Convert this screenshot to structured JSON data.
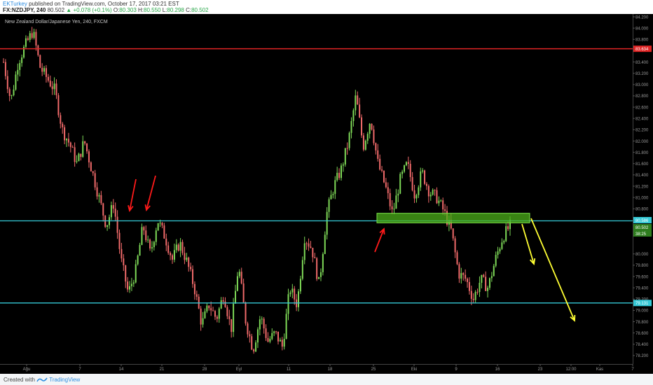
{
  "header": {
    "author": "EKTurkey",
    "published": "published on TradingView.com, October 17, 2017 03:21 EST",
    "symbol": "FX:NZDJPY, 240",
    "last": "80.502",
    "change": "+0.078 (+0.1%)",
    "o_label": "O:",
    "o": "80.303",
    "h_label": "H:",
    "h": "80.550",
    "l_label": "L:",
    "l": "80.298",
    "c_label": "C:",
    "c": "80.502"
  },
  "footer": {
    "created_with": "Created with",
    "brand": "TradingView"
  },
  "chart_data": {
    "type": "candlestick",
    "title": "New Zealand Dollar/Japanese Yen, 240, FXCM",
    "ylim": [
      78.05,
      84.25
    ],
    "y_ticks": [
      "84.200",
      "84.000",
      "83.800",
      "83.400",
      "83.200",
      "83.000",
      "82.800",
      "82.600",
      "82.400",
      "82.200",
      "82.000",
      "81.800",
      "81.600",
      "81.400",
      "81.200",
      "81.000",
      "80.800",
      "80.000",
      "79.800",
      "79.600",
      "79.400",
      "79.200",
      "79.000",
      "78.800",
      "78.600",
      "78.400",
      "78.200"
    ],
    "x_ticks": [
      "Ağu",
      "7",
      "14",
      "21",
      "28",
      "Eyl",
      "11",
      "18",
      "25",
      "Eki",
      "9",
      "16",
      "23",
      "12:00",
      "Kas",
      "7"
    ],
    "price_labels": {
      "top_resistance": "83.634",
      "resistance": "80.586",
      "current": "80.502",
      "countdown": "38:25",
      "support": "79.131"
    },
    "levels": {
      "top_resistance": 83.634,
      "resistance": 80.586,
      "support": 79.131
    },
    "zone": {
      "top": 80.72,
      "bottom": 80.55
    },
    "path": [
      83.4,
      82.7,
      83.4,
      83.7,
      83.95,
      83.3,
      83.1,
      82.9,
      82.2,
      81.95,
      81.6,
      82.0,
      81.5,
      81.0,
      80.5,
      80.9,
      79.9,
      79.3,
      79.7,
      80.5,
      80.0,
      80.6,
      80.3,
      79.9,
      80.2,
      79.85,
      79.4,
      78.75,
      79.1,
      78.85,
      79.3,
      78.65,
      79.8,
      78.8,
      78.3,
      78.9,
      78.45,
      78.6,
      78.35,
      79.4,
      79.1,
      80.3,
      80.1,
      79.45,
      80.7,
      81.2,
      81.5,
      82.0,
      82.8,
      81.9,
      82.4,
      81.6,
      81.2,
      80.7,
      81.3,
      81.6,
      81.05,
      81.45,
      81.1,
      81.0,
      80.75,
      80.4,
      79.65,
      79.55,
      79.2,
      79.55,
      79.4,
      79.9,
      80.3,
      80.5
    ],
    "annotations": {
      "red_arrows": 3,
      "yellow_arrows": 2
    }
  }
}
